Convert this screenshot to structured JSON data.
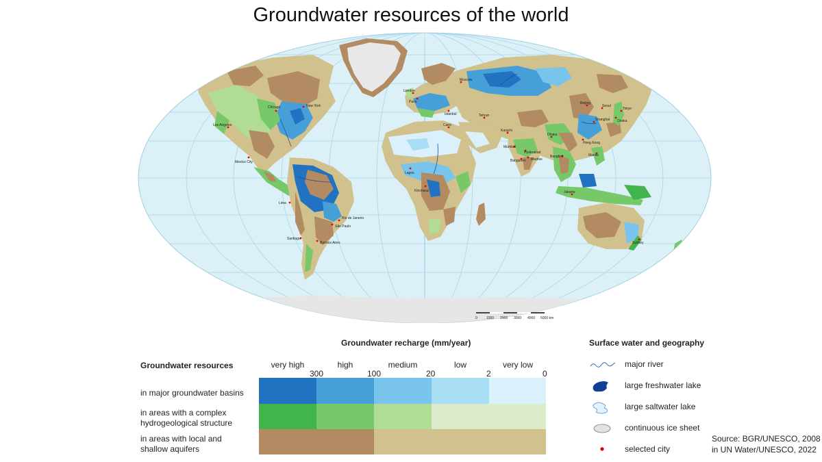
{
  "title": "Groundwater resources of the world",
  "map": {
    "cities": [
      {
        "name": "Los Angeles"
      },
      {
        "name": "Mexico City"
      },
      {
        "name": "Chicago"
      },
      {
        "name": "New York"
      },
      {
        "name": "Lima"
      },
      {
        "name": "Santiago"
      },
      {
        "name": "Buenos Aires"
      },
      {
        "name": "Rio de Janeiro"
      },
      {
        "name": "São Paulo"
      },
      {
        "name": "London"
      },
      {
        "name": "Paris"
      },
      {
        "name": "Moscow"
      },
      {
        "name": "Istanbul"
      },
      {
        "name": "Cairo"
      },
      {
        "name": "Tehran"
      },
      {
        "name": "Lagos"
      },
      {
        "name": "Kinshasa"
      },
      {
        "name": "Karachi"
      },
      {
        "name": "Mumbai"
      },
      {
        "name": "Hyderabad"
      },
      {
        "name": "Bangalore"
      },
      {
        "name": "Madras"
      },
      {
        "name": "Dhaka"
      },
      {
        "name": "Beijing"
      },
      {
        "name": "Seoul"
      },
      {
        "name": "Tokyo"
      },
      {
        "name": "Osaka"
      },
      {
        "name": "Shanghai"
      },
      {
        "name": "Hong Kong"
      },
      {
        "name": "Manila"
      },
      {
        "name": "Bangkok"
      },
      {
        "name": "Jakarta"
      },
      {
        "name": "Sydney"
      }
    ],
    "scale_labels": [
      "0",
      "1000",
      "2000",
      "3000",
      "4000",
      "5000 km"
    ]
  },
  "recharge_legend": {
    "title": "Groundwater recharge (mm/year)",
    "categories": [
      "very high",
      "high",
      "medium",
      "low",
      "very low"
    ],
    "thresholds": [
      "300",
      "100",
      "20",
      "2",
      "0"
    ]
  },
  "resources_legend": {
    "title": "Groundwater resources",
    "rows": [
      {
        "label_1": "in major groundwater basins",
        "label_2": ""
      },
      {
        "label_1": "in areas with a complex",
        "label_2": "hydrogeological structure"
      },
      {
        "label_1": "in areas with local and",
        "label_2": "shallow aquifers"
      }
    ]
  },
  "colors": {
    "basin": [
      "#2172c0",
      "#479fd8",
      "#79c4ec",
      "#a8def4",
      "#daf1fb"
    ],
    "complex": [
      "#41b54b",
      "#77c868",
      "#b1dc93",
      "#dcebc9"
    ],
    "local": [
      "#b28b63",
      "#d1c18c"
    ],
    "ocean": "#dcf0f7",
    "ice": "#e6e6e6"
  },
  "surface_legend": {
    "title": "Surface water and geography",
    "items": [
      {
        "label": "major river",
        "icon": "river-icon"
      },
      {
        "label": "large freshwater lake",
        "icon": "freshwater-lake-icon"
      },
      {
        "label": "large saltwater lake",
        "icon": "saltwater-lake-icon"
      },
      {
        "label": "continuous ice sheet",
        "icon": "ice-sheet-icon"
      },
      {
        "label": "selected city",
        "icon": "city-dot-icon"
      }
    ]
  },
  "source": {
    "line_1": "Source: BGR/UNESCO, 2008",
    "line_2": "in UN Water/UNESCO, 2022"
  }
}
